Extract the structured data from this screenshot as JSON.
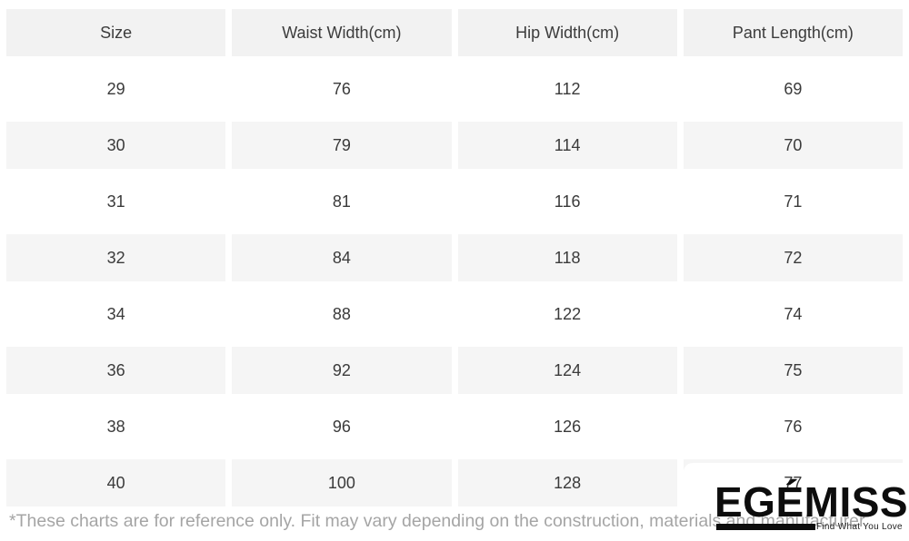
{
  "chart_data": {
    "type": "table",
    "columns": [
      "Size",
      "Waist Width(cm)",
      "Hip Width(cm)",
      "Pant Length(cm)"
    ],
    "rows": [
      [
        "29",
        "76",
        "112",
        "69"
      ],
      [
        "30",
        "79",
        "114",
        "70"
      ],
      [
        "31",
        "81",
        "116",
        "71"
      ],
      [
        "32",
        "84",
        "118",
        "72"
      ],
      [
        "34",
        "88",
        "122",
        "74"
      ],
      [
        "36",
        "92",
        "124",
        "75"
      ],
      [
        "38",
        "96",
        "126",
        "76"
      ],
      [
        "40",
        "100",
        "128",
        "77"
      ]
    ],
    "layout_hints": {
      "striped_rows": true,
      "stripe_on": "even data rows (30, 32, 36, 40) and header"
    }
  },
  "footer": {
    "disclaimer": "*These charts are for reference only. Fit may vary depending on the construction, materials and manufacturer"
  },
  "brand": {
    "wordmark": "EGÉMISS",
    "tagline": "Find What You Love"
  },
  "colors": {
    "header_bg": "#f2f2f2",
    "row_alt_bg": "#f5f5f5",
    "cell_text": "#3a3a3a",
    "disclaimer_text": "#a5a5a5",
    "logo_black": "#0d0d0d",
    "page_bg": "#ffffff"
  }
}
